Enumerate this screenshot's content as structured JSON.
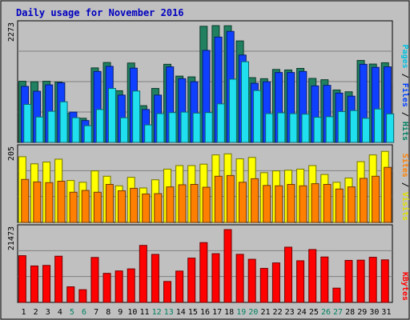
{
  "chart_data": {
    "type": "bar",
    "title": "Daily usage for November 2016",
    "categories": [
      "1",
      "2",
      "3",
      "4",
      "5",
      "6",
      "7",
      "8",
      "9",
      "10",
      "11",
      "12",
      "13",
      "14",
      "15",
      "16",
      "17",
      "18",
      "19",
      "20",
      "21",
      "22",
      "23",
      "24",
      "25",
      "26",
      "27",
      "28",
      "29",
      "30",
      "31"
    ],
    "weekend_days": [
      "5",
      "6",
      "12",
      "13",
      "19",
      "20",
      "26",
      "27"
    ],
    "panels": [
      {
        "id": "hits-files-pages",
        "ymax_label": "2273",
        "ylim": [
          0,
          2273
        ],
        "side_labels": [
          {
            "text": "Pages",
            "color": "#00c0e0"
          },
          {
            "text": "Files",
            "color": "#0040ff"
          },
          {
            "text": "Hits",
            "color": "#008060"
          }
        ],
        "series": [
          {
            "name": "Hits",
            "color": "#208060",
            "values": [
              1190,
              1180,
              1190,
              1175,
              565,
              470,
              1450,
              1555,
              1005,
              1545,
              715,
              1050,
              1520,
              1290,
              1275,
              2260,
              2273,
              2270,
              1975,
              1260,
              1240,
              1420,
              1410,
              1440,
              1245,
              1220,
              1020,
              985,
              1595,
              1525,
              1550
            ]
          },
          {
            "name": "Files",
            "color": "#1040ff",
            "values": [
              1090,
              995,
              1120,
              1160,
              590,
              425,
              1380,
              1480,
              920,
              1445,
              640,
              920,
              1470,
              1240,
              1180,
              1790,
              2050,
              2160,
              1700,
              1150,
              1180,
              1360,
              1360,
              1380,
              1100,
              1110,
              960,
              900,
              1520,
              1460,
              1470
            ]
          },
          {
            "name": "Pages",
            "color": "#20e0f0",
            "values": [
              740,
              495,
              605,
              790,
              480,
              325,
              640,
              1050,
              480,
              1000,
              340,
              560,
              580,
              590,
              570,
              580,
              750,
              1230,
              1570,
              1010,
              560,
              575,
              560,
              550,
              490,
              500,
              600,
              620,
              470,
              650,
              555
            ]
          }
        ]
      },
      {
        "id": "visits-sites",
        "ymax_label": "205",
        "ylim": [
          0,
          205
        ],
        "side_labels": [
          {
            "text": "Sites",
            "color": "#ff8000"
          },
          {
            "text": "Visits",
            "color": "#e0e000"
          }
        ],
        "series": [
          {
            "name": "Visits",
            "color": "#ffff00",
            "values": [
              185,
              165,
              170,
              178,
              118,
              113,
              145,
              130,
              103,
              127,
              97,
              120,
              150,
              160,
              160,
              164,
              190,
              193,
              179,
              183,
              140,
              145,
              147,
              150,
              160,
              135,
              113,
              125,
              171,
              190,
              200
            ]
          },
          {
            "name": "Sites",
            "color": "#ff8000",
            "values": [
              121,
              114,
              112,
              116,
              85,
              90,
              85,
              107,
              89,
              96,
              80,
              81,
              100,
              106,
              107,
              99,
              130,
              132,
              113,
              123,
              104,
              103,
              107,
              103,
              109,
              107,
              94,
              100,
              124,
              130,
              155
            ]
          }
        ]
      },
      {
        "id": "kbytes",
        "ymax_label": "21473",
        "ylim": [
          0,
          21473
        ],
        "side_labels": [
          {
            "text": "KBytes",
            "color": "#ff0000"
          }
        ],
        "series": [
          {
            "name": "KBytes",
            "color": "#ff0000",
            "values": [
              13780,
              10750,
              10910,
              13630,
              4600,
              3750,
              13260,
              8570,
              9280,
              9890,
              16810,
              14160,
              6170,
              9240,
              13070,
              17640,
              14370,
              21473,
              14180,
              12720,
              10040,
              11650,
              16290,
              12280,
              15600,
              13400,
              4210,
              12390,
              12460,
              13310,
              12550
            ]
          }
        ]
      }
    ],
    "frame_colors": {
      "outer": "#c0c0c0",
      "plot_bg": "#c0c0c0",
      "title": "#0000c0",
      "weekend_label": "#008060",
      "weekday_label": "#000000",
      "grid": "#808080"
    }
  }
}
